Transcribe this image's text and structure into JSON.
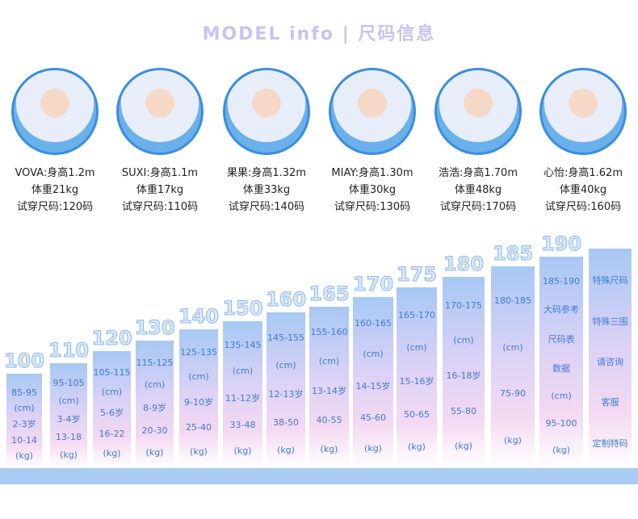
{
  "header": {
    "title_en": "MODEL info",
    "separator": "|",
    "title_cn": "尺码信息"
  },
  "models": [
    {
      "name_line": "VOVA:身高1.2m",
      "weight": "体重21kg",
      "size": "试穿尺码:120码"
    },
    {
      "name_line": "SUXI:身高1.1m",
      "weight": "体重17kg",
      "size": "试穿尺码:110码"
    },
    {
      "name_line": "果果:身高1.32m",
      "weight": "体重33kg",
      "size": "试穿尺码:140码"
    },
    {
      "name_line": "MIAY:身高1.30m",
      "weight": "体重30kg",
      "size": "试穿尺码:130码"
    },
    {
      "name_line": "浩浩:身高1.70m",
      "weight": "体重48kg",
      "size": "试穿尺码:170码"
    },
    {
      "name_line": "心怡:身高1.62m",
      "weight": "体重40kg",
      "size": "试穿尺码:160码"
    }
  ],
  "sizes": [
    {
      "size": "100",
      "lines": [
        "85-95",
        "(cm)",
        "2-3岁",
        "10-14",
        "(kg)"
      ]
    },
    {
      "size": "110",
      "lines": [
        "95-105",
        "(cm)",
        "3-4岁",
        "13-18",
        "(kg)"
      ]
    },
    {
      "size": "120",
      "lines": [
        "105-115",
        "(cm)",
        "5-6岁",
        "16-22",
        "(kg)"
      ]
    },
    {
      "size": "130",
      "lines": [
        "115-125",
        "(cm)",
        "8-9岁",
        "20-30",
        "(kg)"
      ]
    },
    {
      "size": "140",
      "lines": [
        "125-135",
        "(cm)",
        "9-10岁",
        "25-40",
        "(kg)"
      ]
    },
    {
      "size": "150",
      "lines": [
        "135-145",
        "(cm)",
        "11-12岁",
        "33-48",
        "(kg)"
      ]
    },
    {
      "size": "160",
      "lines": [
        "145-155",
        "(cm)",
        "12-13岁",
        "38-50",
        "(kg)"
      ]
    },
    {
      "size": "165",
      "lines": [
        "155-160",
        "(cm)",
        "13-14岁",
        "40-55",
        "(kg)"
      ]
    },
    {
      "size": "170",
      "lines": [
        "160-165",
        "(cm)",
        "14-15岁",
        "45-60",
        "(kg)"
      ]
    },
    {
      "size": "175",
      "lines": [
        "165-170",
        "(cm)",
        "15-16岁",
        "50-65",
        "(kg)"
      ]
    },
    {
      "size": "180",
      "lines": [
        "170-175",
        "(cm)",
        "16-18岁",
        "55-80",
        "(kg)"
      ]
    },
    {
      "size": "185",
      "lines": [
        "180-185",
        "(cm)",
        "75-90",
        "(kg)"
      ]
    },
    {
      "size": "190",
      "lines": [
        "185-190",
        "大码参考",
        "尺码表",
        "数据",
        "(cm)",
        "95-100",
        "(kg)"
      ]
    },
    {
      "lines": [
        "特殊尺码",
        "特殊三围",
        "请咨询",
        "客服",
        "定制特码"
      ]
    }
  ]
}
